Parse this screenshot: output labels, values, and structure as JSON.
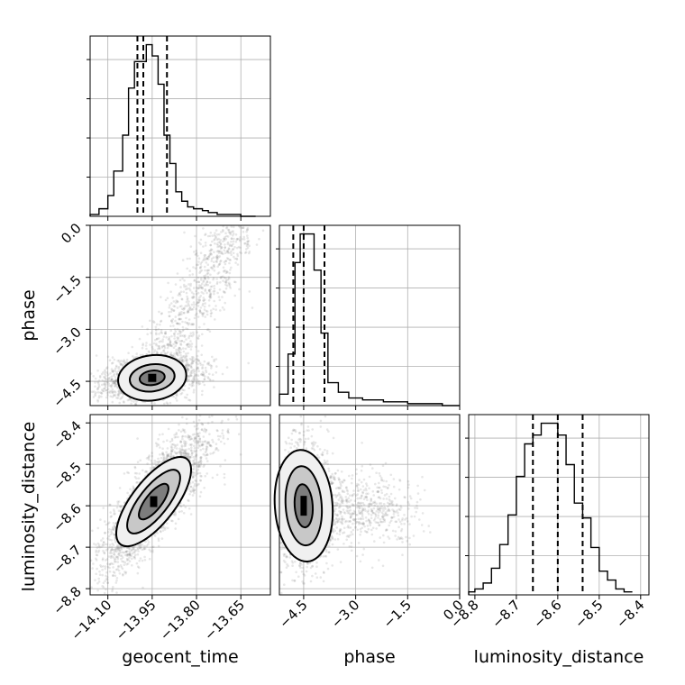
{
  "chart_data": {
    "type": "corner",
    "parameters": [
      "geocent_time",
      "phase",
      "luminosity_distance"
    ],
    "axes": {
      "geocent_time": {
        "label": "geocent_time",
        "range": [
          -14.16,
          -13.55
        ],
        "ticks": [
          -14.1,
          -13.95,
          -13.8,
          -13.65
        ],
        "tick_labels": [
          "−14.10",
          "−13.95",
          "−13.80",
          "−13.65"
        ]
      },
      "phase": {
        "label": "phase",
        "range": [
          -5.2,
          0.0
        ],
        "ticks": [
          -4.5,
          -3.0,
          -1.5,
          0.0
        ],
        "tick_labels": [
          "−4.5",
          "−3.0",
          "−1.5",
          "0.0"
        ]
      },
      "luminosity_distance": {
        "label": "luminosity_distance",
        "range": [
          -8.815,
          -8.38
        ],
        "ticks": [
          -8.8,
          -8.7,
          -8.6,
          -8.5,
          -8.4
        ],
        "tick_labels": [
          "−8.8",
          "−8.7",
          "−8.6",
          "−8.5",
          "−8.4"
        ]
      }
    },
    "marginals": [
      {
        "parameter": "geocent_time",
        "quantiles": [
          -14.0,
          -13.98,
          -13.9
        ],
        "bin_edges": [
          -14.16,
          -14.13,
          -14.1,
          -14.08,
          -14.05,
          -14.03,
          -14.01,
          -13.99,
          -13.97,
          -13.95,
          -13.93,
          -13.91,
          -13.89,
          -13.87,
          -13.85,
          -13.83,
          -13.81,
          -13.78,
          -13.76,
          -13.73,
          -13.7,
          -13.65,
          -13.6
        ],
        "counts": [
          1,
          4,
          11,
          24,
          43,
          68,
          82,
          82,
          91,
          85,
          70,
          43,
          28,
          13,
          8,
          5,
          4,
          3,
          2,
          1,
          1,
          0
        ]
      },
      {
        "parameter": "phase",
        "quantiles": [
          -4.8,
          -4.5,
          -3.9
        ],
        "bin_edges": [
          -5.2,
          -4.95,
          -4.75,
          -4.6,
          -4.4,
          -4.2,
          -4.0,
          -3.8,
          -3.5,
          -3.2,
          -2.8,
          -2.2,
          -1.5,
          -0.5,
          0.0
        ],
        "counts": [
          6,
          27,
          75,
          90,
          90,
          71,
          38,
          12,
          7,
          4,
          3,
          2,
          1,
          0
        ]
      },
      {
        "parameter": "luminosity_distance",
        "quantiles": [
          -8.66,
          -8.6,
          -8.54
        ],
        "bin_edges": [
          -8.815,
          -8.8,
          -8.78,
          -8.76,
          -8.74,
          -8.72,
          -8.7,
          -8.68,
          -8.66,
          -8.64,
          -8.62,
          -8.6,
          -8.58,
          -8.56,
          -8.54,
          -8.52,
          -8.5,
          -8.48,
          -8.46,
          -8.44,
          -8.42
        ],
        "counts": [
          1,
          2,
          4,
          9,
          17,
          27,
          40,
          51,
          54,
          58,
          58,
          54,
          44,
          31,
          26,
          16,
          8,
          5,
          2,
          1
        ]
      }
    ],
    "joint": [
      {
        "x": "geocent_time",
        "y": "phase",
        "peak": [
          -13.95,
          -4.4
        ]
      },
      {
        "x": "geocent_time",
        "y": "luminosity_distance",
        "peak": [
          -13.945,
          -8.59
        ]
      },
      {
        "x": "phase",
        "y": "luminosity_distance",
        "peak": [
          -4.5,
          -8.6
        ]
      }
    ],
    "grid": true
  }
}
